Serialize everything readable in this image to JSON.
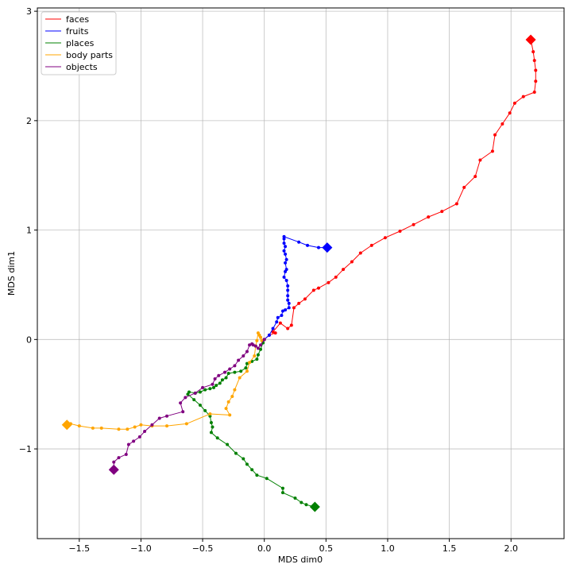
{
  "chart_data": {
    "type": "line",
    "xlabel": "MDS dim0",
    "ylabel": "MDS dim1",
    "xlim": [
      -1.84,
      2.43
    ],
    "ylim": [
      -1.82,
      3.03
    ],
    "xticks": [
      -1.5,
      -1.0,
      -0.5,
      0.0,
      0.5,
      1.0,
      1.5,
      2.0
    ],
    "xtick_labels": [
      "−1.5",
      "−1.0",
      "−0.5",
      "0.0",
      "0.5",
      "1.0",
      "1.5",
      "2.0"
    ],
    "yticks": [
      -1,
      0,
      1,
      2,
      3
    ],
    "ytick_labels": [
      "−1",
      "0",
      "1",
      "2",
      "3"
    ],
    "grid": true,
    "legend_position": "top-left",
    "series": [
      {
        "name": "faces",
        "color": "#ff0000",
        "points": [
          [
            0.0,
            0.0
          ],
          [
            0.04,
            0.04
          ],
          [
            0.09,
            0.06
          ],
          [
            0.07,
            0.07
          ],
          [
            0.13,
            0.15
          ],
          [
            0.19,
            0.1
          ],
          [
            0.22,
            0.13
          ],
          [
            0.24,
            0.29
          ],
          [
            0.28,
            0.33
          ],
          [
            0.33,
            0.37
          ],
          [
            0.4,
            0.45
          ],
          [
            0.44,
            0.47
          ],
          [
            0.52,
            0.52
          ],
          [
            0.58,
            0.57
          ],
          [
            0.64,
            0.64
          ],
          [
            0.71,
            0.71
          ],
          [
            0.78,
            0.79
          ],
          [
            0.87,
            0.86
          ],
          [
            0.98,
            0.93
          ],
          [
            1.1,
            0.99
          ],
          [
            1.21,
            1.05
          ],
          [
            1.33,
            1.12
          ],
          [
            1.44,
            1.17
          ],
          [
            1.56,
            1.24
          ],
          [
            1.62,
            1.39
          ],
          [
            1.71,
            1.49
          ],
          [
            1.75,
            1.64
          ],
          [
            1.85,
            1.72
          ],
          [
            1.87,
            1.87
          ],
          [
            1.93,
            1.97
          ],
          [
            1.99,
            2.07
          ],
          [
            2.03,
            2.16
          ],
          [
            2.1,
            2.22
          ],
          [
            2.19,
            2.26
          ],
          [
            2.2,
            2.36
          ],
          [
            2.2,
            2.46
          ],
          [
            2.19,
            2.55
          ],
          [
            2.18,
            2.63
          ],
          [
            2.16,
            2.74
          ]
        ]
      },
      {
        "name": "fruits",
        "color": "#0000ff",
        "points": [
          [
            0.0,
            0.0
          ],
          [
            0.04,
            0.04
          ],
          [
            0.07,
            0.1
          ],
          [
            0.1,
            0.16
          ],
          [
            0.11,
            0.2
          ],
          [
            0.14,
            0.22
          ],
          [
            0.15,
            0.26
          ],
          [
            0.17,
            0.27
          ],
          [
            0.2,
            0.29
          ],
          [
            0.2,
            0.33
          ],
          [
            0.19,
            0.36
          ],
          [
            0.19,
            0.4
          ],
          [
            0.19,
            0.45
          ],
          [
            0.19,
            0.49
          ],
          [
            0.18,
            0.54
          ],
          [
            0.16,
            0.57
          ],
          [
            0.17,
            0.62
          ],
          [
            0.18,
            0.64
          ],
          [
            0.17,
            0.7
          ],
          [
            0.18,
            0.73
          ],
          [
            0.17,
            0.78
          ],
          [
            0.16,
            0.81
          ],
          [
            0.17,
            0.85
          ],
          [
            0.16,
            0.88
          ],
          [
            0.16,
            0.92
          ],
          [
            0.16,
            0.94
          ],
          [
            0.28,
            0.89
          ],
          [
            0.35,
            0.86
          ],
          [
            0.44,
            0.84
          ],
          [
            0.51,
            0.84
          ]
        ]
      },
      {
        "name": "places",
        "color": "#008000",
        "points": [
          [
            0.0,
            0.0
          ],
          [
            -0.01,
            -0.03
          ],
          [
            -0.03,
            -0.09
          ],
          [
            -0.05,
            -0.14
          ],
          [
            -0.06,
            -0.18
          ],
          [
            -0.1,
            -0.2
          ],
          [
            -0.14,
            -0.22
          ],
          [
            -0.15,
            -0.26
          ],
          [
            -0.19,
            -0.29
          ],
          [
            -0.24,
            -0.3
          ],
          [
            -0.29,
            -0.31
          ],
          [
            -0.31,
            -0.35
          ],
          [
            -0.34,
            -0.37
          ],
          [
            -0.36,
            -0.4
          ],
          [
            -0.39,
            -0.42
          ],
          [
            -0.41,
            -0.44
          ],
          [
            -0.44,
            -0.45
          ],
          [
            -0.48,
            -0.46
          ],
          [
            -0.52,
            -0.48
          ],
          [
            -0.56,
            -0.49
          ],
          [
            -0.61,
            -0.48
          ],
          [
            -0.62,
            -0.5
          ],
          [
            -0.57,
            -0.55
          ],
          [
            -0.52,
            -0.6
          ],
          [
            -0.48,
            -0.65
          ],
          [
            -0.44,
            -0.7
          ],
          [
            -0.43,
            -0.76
          ],
          [
            -0.42,
            -0.8
          ],
          [
            -0.43,
            -0.85
          ],
          [
            -0.38,
            -0.9
          ],
          [
            -0.3,
            -0.96
          ],
          [
            -0.23,
            -1.04
          ],
          [
            -0.17,
            -1.09
          ],
          [
            -0.14,
            -1.14
          ],
          [
            -0.1,
            -1.19
          ],
          [
            -0.06,
            -1.24
          ],
          [
            0.02,
            -1.27
          ],
          [
            0.15,
            -1.36
          ],
          [
            0.15,
            -1.4
          ],
          [
            0.25,
            -1.45
          ],
          [
            0.3,
            -1.49
          ],
          [
            0.34,
            -1.51
          ],
          [
            0.41,
            -1.53
          ]
        ]
      },
      {
        "name": "body parts",
        "color": "#ffa500",
        "points": [
          [
            0.0,
            0.0
          ],
          [
            -0.02,
            -0.01
          ],
          [
            -0.03,
            0.02
          ],
          [
            -0.04,
            0.04
          ],
          [
            -0.05,
            0.06
          ],
          [
            -0.06,
            -0.01
          ],
          [
            -0.07,
            -0.06
          ],
          [
            -0.08,
            -0.15
          ],
          [
            -0.12,
            -0.21
          ],
          [
            -0.14,
            -0.29
          ],
          [
            -0.2,
            -0.35
          ],
          [
            -0.24,
            -0.46
          ],
          [
            -0.26,
            -0.52
          ],
          [
            -0.29,
            -0.57
          ],
          [
            -0.31,
            -0.63
          ],
          [
            -0.28,
            -0.69
          ],
          [
            -0.44,
            -0.68
          ],
          [
            -0.63,
            -0.77
          ],
          [
            -0.79,
            -0.79
          ],
          [
            -0.91,
            -0.79
          ],
          [
            -1.0,
            -0.78
          ],
          [
            -1.05,
            -0.8
          ],
          [
            -1.11,
            -0.82
          ],
          [
            -1.18,
            -0.82
          ],
          [
            -1.32,
            -0.81
          ],
          [
            -1.39,
            -0.81
          ],
          [
            -1.5,
            -0.79
          ],
          [
            -1.57,
            -0.77
          ],
          [
            -1.6,
            -0.78
          ]
        ]
      },
      {
        "name": "objects",
        "color": "#800080",
        "points": [
          [
            0.0,
            0.0
          ],
          [
            -0.03,
            -0.05
          ],
          [
            -0.05,
            -0.08
          ],
          [
            -0.07,
            -0.06
          ],
          [
            -0.09,
            -0.05
          ],
          [
            -0.1,
            -0.04
          ],
          [
            -0.12,
            -0.05
          ],
          [
            -0.14,
            -0.11
          ],
          [
            -0.17,
            -0.15
          ],
          [
            -0.21,
            -0.19
          ],
          [
            -0.24,
            -0.24
          ],
          [
            -0.28,
            -0.27
          ],
          [
            -0.32,
            -0.3
          ],
          [
            -0.37,
            -0.33
          ],
          [
            -0.4,
            -0.36
          ],
          [
            -0.42,
            -0.41
          ],
          [
            -0.5,
            -0.44
          ],
          [
            -0.56,
            -0.49
          ],
          [
            -0.64,
            -0.53
          ],
          [
            -0.68,
            -0.58
          ],
          [
            -0.66,
            -0.66
          ],
          [
            -0.79,
            -0.7
          ],
          [
            -0.85,
            -0.72
          ],
          [
            -0.91,
            -0.78
          ],
          [
            -0.97,
            -0.84
          ],
          [
            -1.01,
            -0.89
          ],
          [
            -1.06,
            -0.93
          ],
          [
            -1.1,
            -0.96
          ],
          [
            -1.12,
            -1.05
          ],
          [
            -1.18,
            -1.08
          ],
          [
            -1.22,
            -1.12
          ],
          [
            -1.22,
            -1.19
          ]
        ]
      }
    ]
  }
}
